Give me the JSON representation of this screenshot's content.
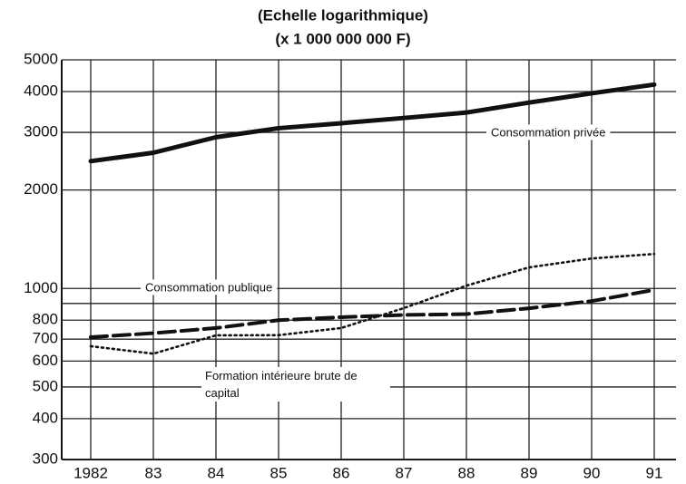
{
  "chart_data": {
    "type": "line",
    "title": "(Echelle logarithmique)",
    "subtitle": "(x 1 000 000 000 F)",
    "log_scale": true,
    "grid": true,
    "categories": [
      "1982",
      "83",
      "84",
      "85",
      "86",
      "87",
      "88",
      "89",
      "90",
      "91"
    ],
    "ylim": [
      300,
      5000
    ],
    "yticks": [
      300,
      400,
      500,
      600,
      700,
      800,
      1000,
      2000,
      3000,
      4000,
      5000
    ],
    "y_minor_ticks": [
      900
    ],
    "series": [
      {
        "name": "Consommation privée",
        "color": "#111111",
        "dash": "solid",
        "values": [
          2450,
          2600,
          2900,
          3090,
          3200,
          3320,
          3450,
          3700,
          3950,
          4200
        ]
      },
      {
        "name": "Consommation publique",
        "color": "#111111",
        "dash": "dotted",
        "values": [
          666,
          632,
          719,
          720,
          757,
          871,
          1020,
          1160,
          1235,
          1275
        ]
      },
      {
        "name": "Formation intérieure brute de capital",
        "color": "#111111",
        "dash": "dashed",
        "values": [
          710,
          730,
          757,
          800,
          817,
          830,
          835,
          870,
          915,
          990
        ]
      }
    ]
  }
}
